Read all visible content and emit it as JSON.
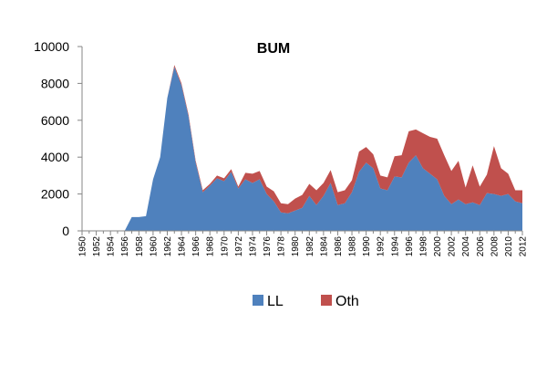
{
  "chart_data": {
    "type": "area",
    "stacked": true,
    "title": "BUM",
    "xlabel": "",
    "ylabel": "",
    "ylim": [
      0,
      10000
    ],
    "yticks": [
      "0",
      "2000",
      "4000",
      "6000",
      "8000",
      "10000"
    ],
    "xlim": [
      1950,
      2012
    ],
    "xtick_step": 2,
    "grid": false,
    "legend_position": "bottom",
    "x": [
      1950,
      1951,
      1952,
      1953,
      1954,
      1955,
      1956,
      1957,
      1958,
      1959,
      1960,
      1961,
      1962,
      1963,
      1964,
      1965,
      1966,
      1967,
      1968,
      1969,
      1970,
      1971,
      1972,
      1973,
      1974,
      1975,
      1976,
      1977,
      1978,
      1979,
      1980,
      1981,
      1982,
      1983,
      1984,
      1985,
      1986,
      1987,
      1988,
      1989,
      1990,
      1991,
      1992,
      1993,
      1994,
      1995,
      1996,
      1997,
      1998,
      1999,
      2000,
      2001,
      2002,
      2003,
      2004,
      2005,
      2006,
      2007,
      2008,
      2009,
      2010,
      2011,
      2012
    ],
    "series": [
      {
        "name": "LL",
        "color": "#4F81BD",
        "values": [
          0,
          0,
          0,
          0,
          0,
          0,
          0,
          750,
          750,
          800,
          2800,
          4000,
          7200,
          8900,
          7900,
          6200,
          3700,
          2100,
          2450,
          2850,
          2700,
          3200,
          2300,
          2800,
          2600,
          2800,
          2000,
          1600,
          1000,
          950,
          1100,
          1250,
          1900,
          1400,
          1900,
          2600,
          1400,
          1500,
          2100,
          3200,
          3700,
          3400,
          2300,
          2200,
          2950,
          2900,
          3700,
          4100,
          3400,
          3100,
          2800,
          1900,
          1450,
          1700,
          1450,
          1550,
          1400,
          2050,
          2000,
          1900,
          2000,
          1600,
          1500
        ]
      },
      {
        "name": "Oth",
        "color": "#C0504D",
        "values": [
          0,
          0,
          0,
          0,
          0,
          0,
          0,
          0,
          0,
          0,
          0,
          0,
          0,
          100,
          100,
          100,
          100,
          100,
          100,
          150,
          150,
          150,
          100,
          350,
          500,
          450,
          400,
          550,
          500,
          500,
          650,
          700,
          650,
          800,
          700,
          700,
          700,
          700,
          650,
          1100,
          850,
          750,
          700,
          700,
          1100,
          1200,
          1700,
          1400,
          1900,
          2000,
          2200,
          2200,
          1800,
          2100,
          900,
          2000,
          1000,
          1000,
          2600,
          1500,
          1100,
          600,
          700
        ]
      }
    ]
  }
}
